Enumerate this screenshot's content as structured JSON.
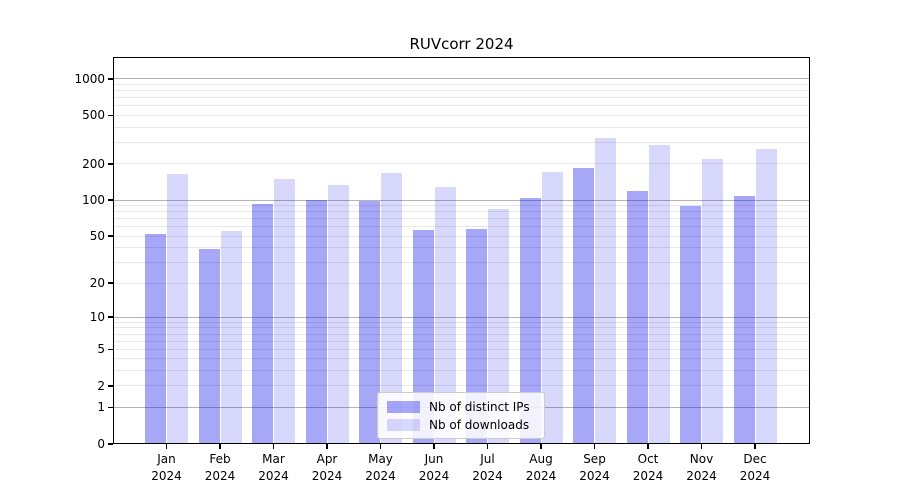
{
  "chart_data": {
    "type": "bar",
    "title": "RUVcorr 2024",
    "y_scale": "log10(value+1)",
    "ylim": [
      0,
      1513
    ],
    "grid": true,
    "legend_position": "lower center",
    "y_ticks": [
      0,
      1,
      2,
      5,
      10,
      20,
      50,
      100,
      200,
      500,
      1000
    ],
    "y_major_gridlines": [
      1,
      10,
      100,
      1000
    ],
    "y_minor_gridlines": [
      2,
      3,
      4,
      5,
      6,
      7,
      8,
      9,
      20,
      30,
      40,
      50,
      60,
      70,
      80,
      90,
      200,
      300,
      400,
      500,
      600,
      700,
      800,
      900
    ],
    "x_categories": [
      {
        "month": "Jan",
        "year": "2024"
      },
      {
        "month": "Feb",
        "year": "2024"
      },
      {
        "month": "Mar",
        "year": "2024"
      },
      {
        "month": "Apr",
        "year": "2024"
      },
      {
        "month": "May",
        "year": "2024"
      },
      {
        "month": "Jun",
        "year": "2024"
      },
      {
        "month": "Jul",
        "year": "2024"
      },
      {
        "month": "Aug",
        "year": "2024"
      },
      {
        "month": "Sep",
        "year": "2024"
      },
      {
        "month": "Oct",
        "year": "2024"
      },
      {
        "month": "Nov",
        "year": "2024"
      },
      {
        "month": "Dec",
        "year": "2024"
      }
    ],
    "series": [
      {
        "name": "Nb of distinct IPs",
        "color": "rgba(10,10,235,0.36)",
        "values": [
          52,
          39,
          93,
          100,
          99,
          56,
          58,
          105,
          184,
          120,
          90,
          108
        ]
      },
      {
        "name": "Nb of downloads",
        "color": "rgba(10,10,235,0.16)",
        "values": [
          166,
          55,
          150,
          134,
          167,
          128,
          84,
          172,
          328,
          288,
          218,
          263
        ]
      }
    ],
    "colors": {
      "major_gridline": "#b4b4b4",
      "minor_gridline": "#e7e7e7",
      "axis": "#000000"
    }
  }
}
